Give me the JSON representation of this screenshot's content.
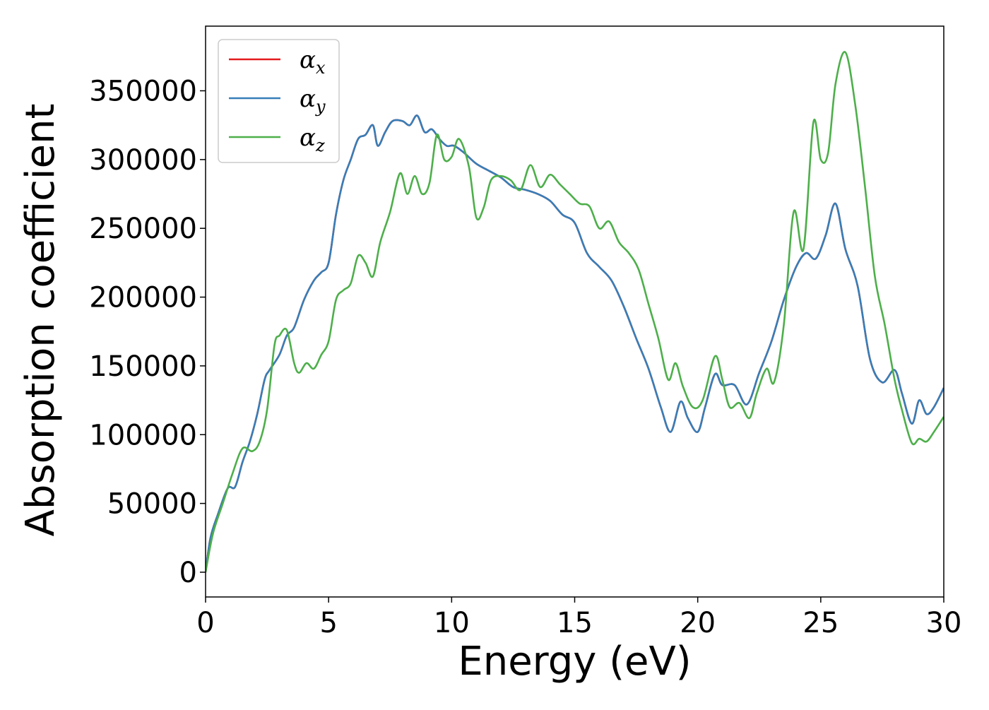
{
  "chart_data": {
    "type": "line",
    "title": "",
    "xlabel": "Energy (eV)",
    "ylabel": "Absorption coefficient",
    "xlim": [
      0,
      30
    ],
    "ylim": [
      -18000,
      397000
    ],
    "xticks": [
      0,
      5,
      10,
      15,
      20,
      25,
      30
    ],
    "yticks": [
      0,
      50000,
      100000,
      150000,
      200000,
      250000,
      300000,
      350000
    ],
    "grid": false,
    "legend": {
      "placement": "top-left",
      "entries": [
        {
          "symbol": "α",
          "sub": "x",
          "color": "#e41a1c"
        },
        {
          "symbol": "α",
          "sub": "y",
          "color": "#377eb8"
        },
        {
          "symbol": "α",
          "sub": "z",
          "color": "#4daf4a"
        }
      ]
    },
    "series": [
      {
        "key": "x",
        "color": "#e41a1c",
        "x": [
          0,
          0.2,
          0.5,
          0.9,
          1.2,
          1.5,
          1.8,
          2.1,
          2.4,
          2.6,
          3.0,
          3.3,
          3.6,
          4.0,
          4.4,
          4.7,
          5.0,
          5.3,
          5.6,
          5.9,
          6.2,
          6.5,
          6.8,
          7.0,
          7.3,
          7.6,
          8.0,
          8.3,
          8.6,
          8.9,
          9.2,
          9.5,
          9.8,
          10.1,
          10.5,
          11.0,
          11.5,
          12.0,
          12.5,
          13.0,
          13.5,
          14.0,
          14.5,
          15.0,
          15.5,
          16.0,
          16.5,
          17.0,
          17.5,
          18.0,
          18.5,
          18.9,
          19.3,
          19.6,
          20.0,
          20.3,
          20.7,
          21.0,
          21.5,
          22.0,
          22.5,
          23.0,
          23.5,
          24.0,
          24.4,
          24.8,
          25.2,
          25.6,
          26.0,
          26.5,
          27.0,
          27.5,
          28.0,
          28.3,
          28.7,
          29.0,
          29.3,
          29.6,
          30.0
        ],
        "y": [
          0,
          25000,
          42000,
          61000,
          62000,
          80000,
          95000,
          115000,
          140000,
          147000,
          158000,
          172000,
          178000,
          198000,
          212000,
          218000,
          225000,
          260000,
          285000,
          300000,
          315000,
          318000,
          325000,
          310000,
          320000,
          328000,
          328000,
          325000,
          332000,
          320000,
          322000,
          315000,
          310000,
          310000,
          305000,
          297000,
          292000,
          287000,
          280000,
          278000,
          275000,
          270000,
          260000,
          254000,
          232000,
          222000,
          212000,
          193000,
          170000,
          148000,
          120000,
          102000,
          124000,
          112000,
          102000,
          120000,
          144000,
          136000,
          136000,
          122000,
          145000,
          168000,
          198000,
          222000,
          232000,
          228000,
          245000,
          268000,
          235000,
          208000,
          155000,
          138000,
          147000,
          130000,
          108000,
          125000,
          115000,
          120000,
          134000
        ]
      },
      {
        "key": "y",
        "color": "#377eb8",
        "x": [
          0,
          0.2,
          0.5,
          0.9,
          1.2,
          1.5,
          1.8,
          2.1,
          2.4,
          2.6,
          3.0,
          3.3,
          3.6,
          4.0,
          4.4,
          4.7,
          5.0,
          5.3,
          5.6,
          5.9,
          6.2,
          6.5,
          6.8,
          7.0,
          7.3,
          7.6,
          8.0,
          8.3,
          8.6,
          8.9,
          9.2,
          9.5,
          9.8,
          10.1,
          10.5,
          11.0,
          11.5,
          12.0,
          12.5,
          13.0,
          13.5,
          14.0,
          14.5,
          15.0,
          15.5,
          16.0,
          16.5,
          17.0,
          17.5,
          18.0,
          18.5,
          18.9,
          19.3,
          19.6,
          20.0,
          20.3,
          20.7,
          21.0,
          21.5,
          22.0,
          22.5,
          23.0,
          23.5,
          24.0,
          24.4,
          24.8,
          25.2,
          25.6,
          26.0,
          26.5,
          27.0,
          27.5,
          28.0,
          28.3,
          28.7,
          29.0,
          29.3,
          29.6,
          30.0
        ],
        "y": [
          0,
          25000,
          42000,
          61000,
          62000,
          80000,
          95000,
          115000,
          140000,
          147000,
          158000,
          172000,
          178000,
          198000,
          212000,
          218000,
          225000,
          260000,
          285000,
          300000,
          315000,
          318000,
          325000,
          310000,
          320000,
          328000,
          328000,
          325000,
          332000,
          320000,
          322000,
          315000,
          310000,
          310000,
          305000,
          297000,
          292000,
          287000,
          280000,
          278000,
          275000,
          270000,
          260000,
          254000,
          232000,
          222000,
          212000,
          193000,
          170000,
          148000,
          120000,
          102000,
          124000,
          112000,
          102000,
          120000,
          144000,
          136000,
          136000,
          122000,
          145000,
          168000,
          198000,
          222000,
          232000,
          228000,
          245000,
          268000,
          235000,
          208000,
          155000,
          138000,
          147000,
          130000,
          108000,
          125000,
          115000,
          120000,
          134000
        ]
      },
      {
        "key": "z",
        "color": "#4daf4a",
        "x": [
          0,
          0.3,
          0.7,
          1.1,
          1.5,
          1.9,
          2.2,
          2.5,
          2.8,
          3.0,
          3.3,
          3.6,
          3.8,
          4.1,
          4.4,
          4.7,
          5.0,
          5.3,
          5.6,
          5.9,
          6.2,
          6.5,
          6.8,
          7.1,
          7.5,
          7.9,
          8.2,
          8.5,
          8.8,
          9.1,
          9.4,
          9.7,
          10.0,
          10.3,
          10.7,
          11.0,
          11.3,
          11.6,
          12.0,
          12.4,
          12.8,
          13.2,
          13.6,
          14.0,
          14.4,
          14.8,
          15.2,
          15.6,
          16.0,
          16.4,
          16.8,
          17.2,
          17.6,
          18.0,
          18.4,
          18.8,
          19.1,
          19.4,
          19.8,
          20.2,
          20.7,
          21.0,
          21.3,
          21.7,
          22.1,
          22.4,
          22.8,
          23.1,
          23.5,
          23.9,
          24.3,
          24.7,
          25.0,
          25.3,
          25.6,
          26.0,
          26.4,
          26.8,
          27.2,
          27.6,
          28.0,
          28.3,
          28.7,
          29.0,
          29.3,
          29.6,
          30.0
        ],
        "y": [
          0,
          28000,
          50000,
          72000,
          90000,
          88000,
          95000,
          118000,
          165000,
          172000,
          176000,
          152000,
          145000,
          152000,
          148000,
          158000,
          168000,
          198000,
          205000,
          210000,
          230000,
          225000,
          215000,
          240000,
          262000,
          290000,
          275000,
          288000,
          275000,
          283000,
          318000,
          300000,
          302000,
          315000,
          295000,
          258000,
          265000,
          285000,
          288000,
          285000,
          278000,
          296000,
          280000,
          289000,
          282000,
          275000,
          268000,
          266000,
          250000,
          255000,
          240000,
          232000,
          220000,
          195000,
          170000,
          140000,
          152000,
          135000,
          120000,
          125000,
          157000,
          140000,
          120000,
          123000,
          112000,
          130000,
          148000,
          138000,
          180000,
          262000,
          235000,
          327000,
          300000,
          305000,
          355000,
          378000,
          340000,
          280000,
          215000,
          180000,
          140000,
          118000,
          94000,
          97000,
          95000,
          102000,
          113000
        ]
      }
    ]
  }
}
